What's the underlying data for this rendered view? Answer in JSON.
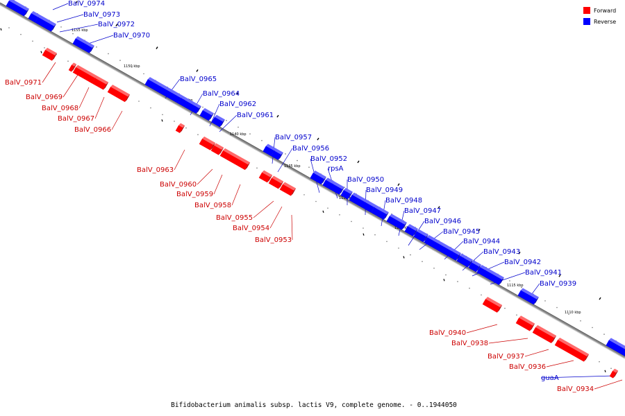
{
  "caption": "Bifidobacterium animalis subsp. lactis V9, complete genome. - 0..1944050",
  "legend": [
    {
      "label": "Forward",
      "color": "#ff0000"
    },
    {
      "label": "Reverse",
      "color": "#0000ff"
    }
  ],
  "colors": {
    "forward": "#ff0000",
    "forward_label": "#cc0000",
    "reverse": "#0000ff",
    "reverse_label": "#0000cc",
    "backbone": "#8a8a8a"
  },
  "kbp_marks": [
    "1155 kbp",
    "1150 kbp",
    "1145 kbp",
    "1140 kbp",
    "1135 kbp",
    "1130 kbp",
    "1125 kbp",
    "1120 kbp",
    "1115 kbp",
    "1110 kbp"
  ],
  "genes": [
    {
      "name": "BalV_0974",
      "strand": "reverse"
    },
    {
      "name": "BalV_0973",
      "strand": "reverse"
    },
    {
      "name": "BalV_0972",
      "strand": "reverse"
    },
    {
      "name": "BalV_0970",
      "strand": "reverse"
    },
    {
      "name": "BalV_0971",
      "strand": "forward"
    },
    {
      "name": "BalV_0969",
      "strand": "forward"
    },
    {
      "name": "BalV_0968",
      "strand": "forward"
    },
    {
      "name": "BalV_0967",
      "strand": "forward"
    },
    {
      "name": "BalV_0966",
      "strand": "forward"
    },
    {
      "name": "BalV_0965",
      "strand": "reverse"
    },
    {
      "name": "BalV_0964",
      "strand": "reverse"
    },
    {
      "name": "BalV_0962",
      "strand": "reverse"
    },
    {
      "name": "BalV_0961",
      "strand": "reverse"
    },
    {
      "name": "BalV_0963",
      "strand": "forward"
    },
    {
      "name": "BalV_0957",
      "strand": "reverse"
    },
    {
      "name": "BalV_0956",
      "strand": "reverse"
    },
    {
      "name": "BalV_0952",
      "strand": "reverse"
    },
    {
      "name": "rpsA",
      "strand": "reverse"
    },
    {
      "name": "BalV_0950",
      "strand": "reverse"
    },
    {
      "name": "BalV_0949",
      "strand": "reverse"
    },
    {
      "name": "BalV_0948",
      "strand": "reverse"
    },
    {
      "name": "BalV_0947",
      "strand": "reverse"
    },
    {
      "name": "BalV_0946",
      "strand": "reverse"
    },
    {
      "name": "BalV_0945",
      "strand": "reverse"
    },
    {
      "name": "BalV_0944",
      "strand": "reverse"
    },
    {
      "name": "BalV_0943",
      "strand": "reverse"
    },
    {
      "name": "BalV_0942",
      "strand": "reverse"
    },
    {
      "name": "BalV_0941",
      "strand": "reverse"
    },
    {
      "name": "BalV_0939",
      "strand": "reverse"
    },
    {
      "name": "BalV_0960",
      "strand": "forward"
    },
    {
      "name": "BalV_0959",
      "strand": "forward"
    },
    {
      "name": "BalV_0958",
      "strand": "forward"
    },
    {
      "name": "BalV_0955",
      "strand": "forward"
    },
    {
      "name": "BalV_0954",
      "strand": "forward"
    },
    {
      "name": "BalV_0953",
      "strand": "forward"
    },
    {
      "name": "BalV_0940",
      "strand": "forward"
    },
    {
      "name": "BalV_0938",
      "strand": "forward"
    },
    {
      "name": "BalV_0937",
      "strand": "forward"
    },
    {
      "name": "BalV_0936",
      "strand": "forward"
    },
    {
      "name": "guaA",
      "strand": "reverse"
    },
    {
      "name": "BalV_0934",
      "strand": "forward"
    }
  ]
}
